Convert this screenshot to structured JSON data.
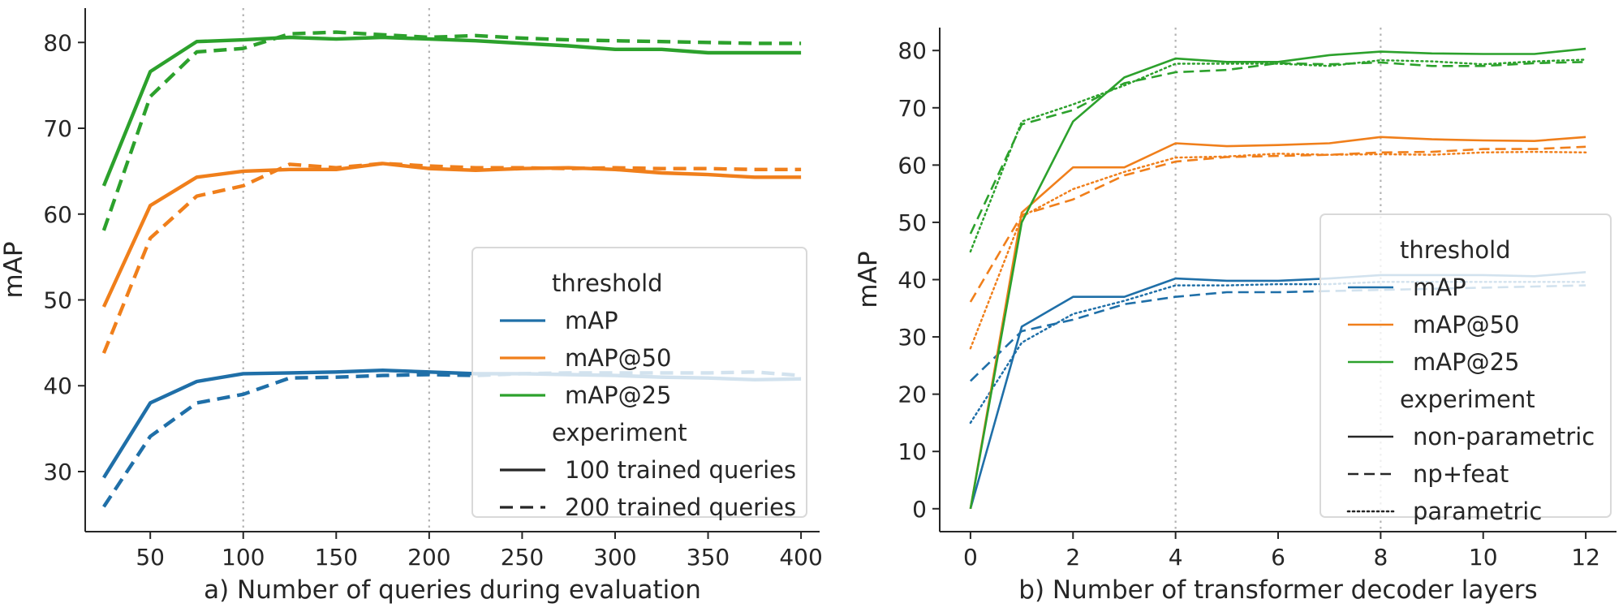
{
  "chart_data": [
    {
      "type": "line",
      "xlabel": "a) Number of queries during evaluation",
      "ylabel": "mAP",
      "xlim": [
        15,
        410
      ],
      "ylim": [
        23,
        84
      ],
      "xticks": [
        50,
        100,
        150,
        200,
        250,
        300,
        350,
        400
      ],
      "yticks": [
        30,
        40,
        50,
        60,
        70,
        80
      ],
      "vlines": [
        100,
        200
      ],
      "x": [
        25,
        50,
        75,
        100,
        125,
        150,
        175,
        200,
        225,
        250,
        275,
        300,
        325,
        350,
        375,
        400
      ],
      "series": [
        {
          "name": "mAP",
          "threshold": "mAP",
          "experiment": "100 trained queries",
          "values": [
            29.3,
            38.0,
            40.5,
            41.4,
            41.5,
            41.6,
            41.8,
            41.6,
            41.4,
            41.4,
            41.3,
            41.2,
            41.0,
            40.9,
            40.7,
            40.8
          ]
        },
        {
          "name": "mAP",
          "threshold": "mAP",
          "experiment": "200 trained queries",
          "values": [
            25.9,
            34.1,
            38.0,
            39.0,
            40.9,
            41.0,
            41.2,
            41.3,
            41.2,
            41.4,
            41.5,
            41.5,
            41.5,
            41.5,
            41.6,
            41.2
          ]
        },
        {
          "name": "mAP@50",
          "threshold": "mAP@50",
          "experiment": "100 trained queries",
          "values": [
            49.2,
            61.0,
            64.3,
            65.0,
            65.2,
            65.2,
            65.9,
            65.3,
            65.1,
            65.3,
            65.4,
            65.2,
            64.8,
            64.6,
            64.3,
            64.3
          ]
        },
        {
          "name": "mAP@50",
          "threshold": "mAP@50",
          "experiment": "200 trained queries",
          "values": [
            43.8,
            57.2,
            62.1,
            63.3,
            65.8,
            65.4,
            65.9,
            65.6,
            65.4,
            65.4,
            65.3,
            65.4,
            65.3,
            65.3,
            65.2,
            65.2
          ]
        },
        {
          "name": "mAP@25",
          "threshold": "mAP@25",
          "experiment": "100 trained queries",
          "values": [
            63.3,
            76.6,
            80.1,
            80.3,
            80.6,
            80.4,
            80.6,
            80.4,
            80.2,
            79.9,
            79.6,
            79.2,
            79.2,
            78.8,
            78.8,
            78.8
          ]
        },
        {
          "name": "mAP@25",
          "threshold": "mAP@25",
          "experiment": "200 trained queries",
          "values": [
            58.1,
            73.7,
            78.9,
            79.3,
            81.0,
            81.2,
            80.9,
            80.6,
            80.8,
            80.5,
            80.3,
            80.2,
            80.1,
            80.0,
            79.9,
            79.9
          ]
        }
      ],
      "legend": {
        "placement": "lower-right",
        "entries": [
          {
            "type": "header",
            "label": "threshold"
          },
          {
            "type": "color",
            "label": "mAP",
            "color": "#1f6fa8"
          },
          {
            "type": "color",
            "label": "mAP@50",
            "color": "#f07f1b"
          },
          {
            "type": "color",
            "label": "mAP@25",
            "color": "#2ca12c"
          },
          {
            "type": "header",
            "label": "experiment"
          },
          {
            "type": "style",
            "label": "100 trained queries",
            "dash": "solid"
          },
          {
            "type": "style",
            "label": "200 trained queries",
            "dash": "dashed"
          }
        ]
      },
      "series_colors": {
        "mAP": "#1f6fa8",
        "mAP@50": "#f07f1b",
        "mAP@25": "#2ca12c"
      },
      "experiment_styles": {
        "100 trained queries": "solid",
        "200 trained queries": "dashed"
      },
      "line_weight": "thick"
    },
    {
      "type": "line",
      "xlabel": "b) Number of transformer decoder layers",
      "ylabel": "mAP",
      "xlim": [
        -0.6,
        12.6
      ],
      "ylim": [
        -4,
        84
      ],
      "xticks": [
        0,
        2,
        4,
        6,
        8,
        10,
        12
      ],
      "yticks": [
        0,
        10,
        20,
        30,
        40,
        50,
        60,
        70,
        80
      ],
      "vlines": [
        4,
        8
      ],
      "x": [
        0,
        1,
        2,
        3,
        4,
        5,
        6,
        7,
        8,
        9,
        10,
        11,
        12
      ],
      "series": [
        {
          "name": "mAP",
          "threshold": "mAP",
          "experiment": "non-parametric",
          "values": [
            0.0,
            31.8,
            37.0,
            37.0,
            40.2,
            39.8,
            39.8,
            40.2,
            40.8,
            40.8,
            40.8,
            40.6,
            41.3
          ]
        },
        {
          "name": "mAP",
          "threshold": "mAP",
          "experiment": "np+feat",
          "values": [
            22.3,
            31.0,
            33.0,
            35.7,
            37.0,
            37.8,
            37.8,
            38.0,
            38.2,
            38.4,
            38.6,
            38.8,
            39.0
          ]
        },
        {
          "name": "mAP",
          "threshold": "mAP",
          "experiment": "parametric",
          "values": [
            15.0,
            29.0,
            34.0,
            36.3,
            39.0,
            39.0,
            39.2,
            39.2,
            39.6,
            39.6,
            39.6,
            39.6,
            39.6
          ]
        },
        {
          "name": "mAP@50",
          "threshold": "mAP@50",
          "experiment": "non-parametric",
          "values": [
            0.0,
            51.7,
            59.6,
            59.6,
            63.8,
            63.3,
            63.5,
            63.8,
            64.9,
            64.5,
            64.3,
            64.2,
            64.9
          ]
        },
        {
          "name": "mAP@50",
          "threshold": "mAP@50",
          "experiment": "np+feat",
          "values": [
            36.1,
            51.3,
            54.0,
            58.2,
            60.6,
            61.4,
            61.6,
            61.8,
            62.2,
            62.3,
            62.8,
            62.8,
            63.2
          ]
        },
        {
          "name": "mAP@50",
          "threshold": "mAP@50",
          "experiment": "parametric",
          "values": [
            28.0,
            51.0,
            55.8,
            58.8,
            61.3,
            61.5,
            62.0,
            61.8,
            61.9,
            61.8,
            62.2,
            62.3,
            62.2
          ]
        },
        {
          "name": "mAP@25",
          "threshold": "mAP@25",
          "experiment": "non-parametric",
          "values": [
            0.0,
            50.0,
            67.6,
            75.3,
            78.6,
            78.0,
            78.0,
            79.2,
            79.8,
            79.5,
            79.4,
            79.4,
            80.3
          ]
        },
        {
          "name": "mAP@25",
          "threshold": "mAP@25",
          "experiment": "np+feat",
          "values": [
            48.0,
            67.1,
            69.6,
            74.3,
            76.2,
            76.6,
            77.8,
            77.6,
            77.9,
            77.3,
            77.3,
            77.8,
            78.0
          ]
        },
        {
          "name": "mAP@25",
          "threshold": "mAP@25",
          "experiment": "parametric",
          "values": [
            44.9,
            67.6,
            70.6,
            73.9,
            77.7,
            77.7,
            77.7,
            77.3,
            78.3,
            78.1,
            77.6,
            78.1,
            78.4
          ]
        }
      ],
      "legend": {
        "placement": "lower-right",
        "entries": [
          {
            "type": "header",
            "label": "threshold"
          },
          {
            "type": "color",
            "label": "mAP",
            "color": "#1f6fa8"
          },
          {
            "type": "color",
            "label": "mAP@50",
            "color": "#f07f1b"
          },
          {
            "type": "color",
            "label": "mAP@25",
            "color": "#2ca12c"
          },
          {
            "type": "header",
            "label": "experiment"
          },
          {
            "type": "style",
            "label": "non-parametric",
            "dash": "solid"
          },
          {
            "type": "style",
            "label": "np+feat",
            "dash": "dashed"
          },
          {
            "type": "style",
            "label": "parametric",
            "dash": "dotted"
          }
        ]
      },
      "series_colors": {
        "mAP": "#1f6fa8",
        "mAP@50": "#f07f1b",
        "mAP@25": "#2ca12c"
      },
      "experiment_styles": {
        "non-parametric": "solid",
        "np+feat": "dashed",
        "parametric": "dotted"
      },
      "line_weight": "thin"
    }
  ]
}
